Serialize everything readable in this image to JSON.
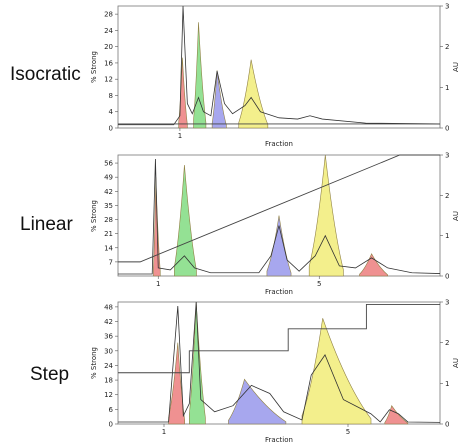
{
  "chart_data": [
    {
      "type": "area",
      "row_label": "Isocratic",
      "xlabel": "Fraction",
      "ylabel_left": "% Strong",
      "ylabel_right": "AU",
      "xticks": [
        1
      ],
      "yticks_left": [
        0,
        4,
        8,
        12,
        16,
        20,
        24,
        28
      ],
      "yticks_right": [
        0,
        1,
        2,
        3
      ],
      "ylim_left": [
        0,
        30
      ],
      "ylim_right": [
        0,
        3
      ],
      "xlim": [
        0,
        5.2
      ],
      "gradient": [
        [
          0,
          1
        ],
        [
          5.2,
          1
        ]
      ],
      "uv_trace": [
        [
          0,
          0.08
        ],
        [
          0.9,
          0.08
        ],
        [
          1.0,
          0.3
        ],
        [
          1.05,
          3.0
        ],
        [
          1.12,
          0.6
        ],
        [
          1.2,
          0.35
        ],
        [
          1.3,
          0.75
        ],
        [
          1.38,
          0.4
        ],
        [
          1.5,
          0.3
        ],
        [
          1.6,
          1.4
        ],
        [
          1.72,
          0.6
        ],
        [
          1.85,
          0.35
        ],
        [
          2.05,
          0.55
        ],
        [
          2.15,
          0.75
        ],
        [
          2.3,
          0.4
        ],
        [
          2.6,
          0.25
        ],
        [
          2.9,
          0.22
        ],
        [
          3.1,
          0.3
        ],
        [
          3.3,
          0.22
        ],
        [
          4.0,
          0.12
        ],
        [
          5.2,
          0.1
        ]
      ],
      "peaks": [
        {
          "color": "#ef8c8c",
          "x_range": [
            0.98,
            1.12
          ],
          "apex": [
            1.04,
            1.73
          ]
        },
        {
          "color": "#8fe08f",
          "x_range": [
            1.22,
            1.42
          ],
          "apex": [
            1.3,
            2.6
          ]
        },
        {
          "color": "#a3a3ee",
          "x_range": [
            1.52,
            1.75
          ],
          "apex": [
            1.6,
            1.42
          ]
        },
        {
          "color": "#f3ef86",
          "x_range": [
            1.95,
            2.42
          ],
          "apex": [
            2.15,
            1.68
          ]
        }
      ]
    },
    {
      "type": "area",
      "row_label": "Linear",
      "xlabel": "Fraction",
      "ylabel_left": "% Strong",
      "ylabel_right": "AU",
      "xticks": [
        1,
        5
      ],
      "yticks_left": [
        7,
        14,
        21,
        28,
        35,
        42,
        49,
        56
      ],
      "yticks_right": [
        0,
        1,
        2,
        3
      ],
      "ylim_left": [
        0,
        60
      ],
      "ylim_right": [
        0,
        3
      ],
      "xlim": [
        0,
        8
      ],
      "gradient": [
        [
          0,
          7
        ],
        [
          0.55,
          7
        ],
        [
          7.0,
          60
        ],
        [
          8,
          60
        ]
      ],
      "uv_trace": [
        [
          0,
          0.05
        ],
        [
          0.85,
          0.05
        ],
        [
          0.93,
          2.9
        ],
        [
          1.0,
          0.2
        ],
        [
          1.3,
          0.15
        ],
        [
          1.65,
          0.5
        ],
        [
          1.9,
          0.2
        ],
        [
          2.3,
          0.08
        ],
        [
          3.5,
          0.08
        ],
        [
          3.8,
          0.5
        ],
        [
          4.0,
          1.25
        ],
        [
          4.2,
          0.4
        ],
        [
          4.5,
          0.12
        ],
        [
          4.9,
          0.5
        ],
        [
          5.15,
          1.0
        ],
        [
          5.5,
          0.25
        ],
        [
          5.9,
          0.2
        ],
        [
          6.3,
          0.45
        ],
        [
          6.7,
          0.2
        ],
        [
          7.3,
          0.08
        ],
        [
          8,
          0.06
        ]
      ],
      "peaks": [
        {
          "color": "#ef8c8c",
          "x_range": [
            0.88,
            1.05
          ],
          "apex": [
            0.94,
            2.45
          ]
        },
        {
          "color": "#8fe08f",
          "x_range": [
            1.4,
            1.95
          ],
          "apex": [
            1.65,
            2.75
          ]
        },
        {
          "color": "#a3a3ee",
          "x_range": [
            3.7,
            4.3
          ],
          "apex": [
            4.0,
            1.5
          ]
        },
        {
          "color": "#f3ef86",
          "x_range": [
            4.75,
            5.6
          ],
          "apex": [
            5.15,
            3.0
          ]
        },
        {
          "color": "#ef8c8c",
          "x_range": [
            6.0,
            6.7
          ],
          "apex": [
            6.3,
            0.55
          ]
        }
      ]
    },
    {
      "type": "area",
      "row_label": "Step",
      "xlabel": "Fraction",
      "ylabel_left": "% Strong",
      "ylabel_right": "AU",
      "xticks": [
        1,
        5
      ],
      "yticks_left": [
        0,
        6,
        12,
        18,
        24,
        30,
        36,
        42,
        48
      ],
      "yticks_right": [
        0,
        1,
        2,
        3
      ],
      "ylim_left": [
        0,
        50
      ],
      "ylim_right": [
        0,
        3
      ],
      "xlim": [
        0,
        7
      ],
      "gradient": [
        [
          0,
          21
        ],
        [
          1.55,
          21
        ],
        [
          1.55,
          30
        ],
        [
          3.7,
          30
        ],
        [
          3.7,
          39
        ],
        [
          5.4,
          39
        ],
        [
          5.4,
          49
        ],
        [
          7,
          49
        ]
      ],
      "uv_trace": [
        [
          0,
          0.05
        ],
        [
          1.1,
          0.05
        ],
        [
          1.2,
          1.5
        ],
        [
          1.3,
          2.9
        ],
        [
          1.42,
          0.2
        ],
        [
          1.55,
          0.5
        ],
        [
          1.7,
          3.0
        ],
        [
          1.8,
          0.6
        ],
        [
          2.1,
          0.3
        ],
        [
          2.5,
          0.45
        ],
        [
          2.9,
          0.95
        ],
        [
          3.3,
          0.75
        ],
        [
          3.6,
          0.3
        ],
        [
          4.0,
          0.1
        ],
        [
          4.2,
          1.2
        ],
        [
          4.5,
          1.7
        ],
        [
          4.9,
          0.6
        ],
        [
          5.5,
          0.25
        ],
        [
          5.7,
          0.05
        ],
        [
          5.9,
          0.35
        ],
        [
          6.1,
          0.25
        ],
        [
          6.3,
          0.05
        ],
        [
          7,
          0.04
        ]
      ],
      "peaks": [
        {
          "color": "#ef8c8c",
          "x_range": [
            1.1,
            1.45
          ],
          "apex": [
            1.3,
            2.0
          ]
        },
        {
          "color": "#8fe08f",
          "x_range": [
            1.55,
            1.9
          ],
          "apex": [
            1.7,
            3.0
          ]
        },
        {
          "color": "#a3a3ee",
          "x_range": [
            2.4,
            3.65
          ],
          "apex": [
            2.75,
            1.1
          ]
        },
        {
          "color": "#f3ef86",
          "x_range": [
            4.0,
            5.5
          ],
          "apex": [
            4.45,
            2.6
          ]
        },
        {
          "color": "#ef8c8c",
          "x_range": [
            5.8,
            6.3
          ],
          "apex": [
            5.95,
            0.45
          ]
        }
      ]
    }
  ]
}
